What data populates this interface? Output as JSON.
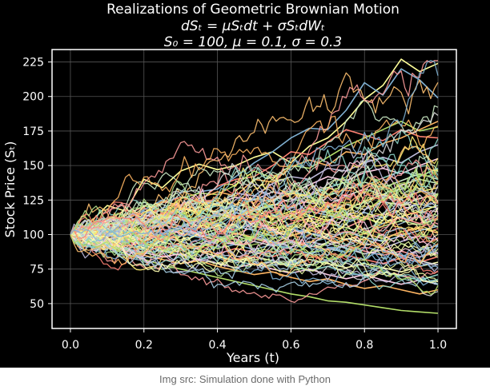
{
  "figure": {
    "background": "#000000",
    "title_lines": [
      "Realizations of Geometric Brownian Motion",
      "dSₜ = μSₜdt + σSₜdWₜ",
      "S₀ = 100, μ = 0.1, σ = 0.3"
    ]
  },
  "chart_data": {
    "type": "line",
    "title": "Realizations of Geometric Brownian Motion",
    "subtitle": [
      "dSₜ = μSₜdt + σSₜdWₜ",
      "S₀ = 100, μ = 0.1, σ = 0.3"
    ],
    "xlabel": "Years (t)",
    "ylabel": "Stock Price (Sₜ)",
    "xlim": [
      -0.05,
      1.05
    ],
    "ylim": [
      32,
      234
    ],
    "xticks": [
      0.0,
      0.2,
      0.4,
      0.6,
      0.8,
      1.0
    ],
    "xtick_labels": [
      "0.0",
      "0.2",
      "0.4",
      "0.6",
      "0.8",
      "1.0"
    ],
    "yticks": [
      50,
      75,
      100,
      125,
      150,
      175,
      200,
      225
    ],
    "ytick_labels": [
      "50",
      "75",
      "100",
      "125",
      "150",
      "175",
      "200",
      "225"
    ],
    "grid": true,
    "legend": "none",
    "n_realizations": 100,
    "S0": 100,
    "mu": 0.1,
    "sigma": 0.3,
    "palette": [
      "#e5f5a0",
      "#8dd3c7",
      "#ffffb3",
      "#bebada",
      "#fb8072",
      "#80b1d3",
      "#fdb462",
      "#b3de69",
      "#fccde5",
      "#d9d9d9",
      "#ccebc5",
      "#ffed6f",
      "#a6cee3",
      "#b2df8a",
      "#fb9a99",
      "#fdbf6f"
    ],
    "x": [
      0.0,
      0.05,
      0.1,
      0.15,
      0.2,
      0.25,
      0.3,
      0.35,
      0.4,
      0.45,
      0.5,
      0.55,
      0.6,
      0.65,
      0.7,
      0.75,
      0.8,
      0.85,
      0.9,
      0.95,
      1.0
    ],
    "series": [
      {
        "color": "#ffff99",
        "values": [
          100,
          108,
          121,
          117,
          140,
          134,
          146,
          151,
          147,
          150,
          156,
          160,
          152,
          164,
          170,
          182,
          198,
          208,
          227,
          218,
          224
        ]
      },
      {
        "color": "#80b1d3",
        "values": [
          100,
          104,
          112,
          110,
          118,
          125,
          120,
          131,
          133,
          142,
          152,
          160,
          170,
          177,
          176,
          190,
          210,
          201,
          220,
          212,
          199
        ]
      },
      {
        "color": "#fb8072",
        "values": [
          100,
          106,
          110,
          118,
          114,
          123,
          127,
          124,
          135,
          140,
          142,
          150,
          160,
          158,
          167,
          176,
          172,
          168,
          176,
          171,
          170
        ]
      },
      {
        "color": "#b3de69",
        "values": [
          100,
          103,
          109,
          114,
          121,
          117,
          126,
          130,
          129,
          136,
          146,
          141,
          150,
          148,
          156,
          164,
          170,
          176,
          182,
          175,
          178
        ]
      },
      {
        "color": "#fdb462",
        "values": [
          100,
          107,
          104,
          112,
          116,
          124,
          121,
          126,
          131,
          128,
          140,
          138,
          149,
          154,
          150,
          160,
          158,
          166,
          170,
          176,
          182
        ]
      },
      {
        "color": "#bebada",
        "values": [
          100,
          102,
          108,
          106,
          113,
          118,
          116,
          124,
          122,
          130,
          128,
          137,
          142,
          140,
          148,
          146,
          152,
          156,
          152,
          160,
          165
        ]
      },
      {
        "color": "#fccde5",
        "values": [
          100,
          105,
          111,
          109,
          114,
          112,
          119,
          117,
          123,
          127,
          125,
          131,
          129,
          136,
          142,
          139,
          145,
          148,
          144,
          150,
          155
        ]
      },
      {
        "color": "#8dd3c7",
        "values": [
          100,
          101,
          104,
          110,
          107,
          113,
          111,
          117,
          121,
          119,
          126,
          124,
          131,
          128,
          134,
          138,
          135,
          141,
          146,
          142,
          148
        ]
      },
      {
        "color": "#ccebc5",
        "values": [
          100,
          103,
          99,
          106,
          110,
          108,
          114,
          120,
          116,
          122,
          119,
          125,
          130,
          127,
          121,
          128,
          133,
          129,
          136,
          140,
          137
        ]
      },
      {
        "color": "#ffed6f",
        "values": [
          100,
          96,
          101,
          105,
          102,
          108,
          112,
          109,
          115,
          113,
          118,
          122,
          120,
          125,
          123,
          118,
          124,
          129,
          126,
          131,
          134
        ]
      },
      {
        "color": "#d9d9d9",
        "values": [
          100,
          104,
          106,
          103,
          109,
          114,
          111,
          106,
          110,
          116,
          113,
          108,
          114,
          119,
          116,
          122,
          118,
          124,
          121,
          126,
          129
        ]
      },
      {
        "color": "#a6cee3",
        "values": [
          100,
          99,
          103,
          100,
          96,
          101,
          105,
          110,
          107,
          103,
          109,
          114,
          111,
          117,
          114,
          110,
          116,
          112,
          118,
          122,
          119
        ]
      },
      {
        "color": "#fb9a99",
        "values": [
          100,
          102,
          98,
          104,
          101,
          97,
          103,
          107,
          104,
          100,
          106,
          103,
          108,
          112,
          109,
          105,
          111,
          115,
          112,
          108,
          114
        ]
      },
      {
        "color": "#b2df8a",
        "values": [
          100,
          97,
          100,
          96,
          102,
          99,
          95,
          100,
          104,
          101,
          97,
          102,
          99,
          104,
          108,
          105,
          101,
          106,
          110,
          107,
          111
        ]
      },
      {
        "color": "#fdbf6f",
        "values": [
          100,
          101,
          97,
          99,
          95,
          100,
          103,
          99,
          96,
          101,
          98,
          94,
          99,
          103,
          100,
          96,
          101,
          97,
          102,
          105,
          101
        ]
      },
      {
        "color": "#bebada",
        "values": [
          100,
          98,
          95,
          97,
          93,
          98,
          95,
          91,
          96,
          93,
          98,
          95,
          91,
          95,
          92,
          97,
          94,
          90,
          95,
          99,
          96
        ]
      },
      {
        "color": "#80b1d3",
        "values": [
          100,
          97,
          94,
          96,
          92,
          95,
          91,
          94,
          90,
          93,
          89,
          93,
          90,
          86,
          90,
          87,
          91,
          88,
          84,
          89,
          92
        ]
      },
      {
        "color": "#fb8072",
        "values": [
          100,
          99,
          95,
          92,
          94,
          90,
          93,
          89,
          86,
          90,
          87,
          84,
          88,
          85,
          81,
          85,
          82,
          79,
          83,
          80,
          84
        ]
      },
      {
        "color": "#ffffb3",
        "values": [
          100,
          96,
          93,
          90,
          92,
          88,
          85,
          88,
          84,
          81,
          84,
          81,
          78,
          82,
          79,
          76,
          79,
          76,
          73,
          77,
          80
        ]
      },
      {
        "color": "#8dd3c7",
        "values": [
          100,
          95,
          92,
          89,
          86,
          89,
          85,
          82,
          85,
          81,
          78,
          81,
          77,
          74,
          77,
          73,
          70,
          73,
          70,
          67,
          71
        ]
      },
      {
        "color": "#fccde5",
        "values": [
          100,
          97,
          93,
          90,
          87,
          84,
          86,
          82,
          79,
          76,
          79,
          75,
          72,
          75,
          71,
          68,
          71,
          67,
          64,
          67,
          64
        ]
      },
      {
        "color": "#fdb462",
        "values": [
          100,
          94,
          91,
          88,
          85,
          82,
          79,
          81,
          77,
          74,
          71,
          73,
          69,
          66,
          68,
          64,
          61,
          63,
          60,
          57,
          60
        ]
      },
      {
        "color": "#b3de69",
        "values": [
          100,
          95,
          91,
          86,
          82,
          78,
          75,
          72,
          69,
          66,
          63,
          60,
          57,
          55,
          52,
          51,
          49,
          47,
          45,
          44,
          43
        ]
      },
      {
        "color": "#ffed6f",
        "values": [
          100,
          103,
          107,
          111,
          108,
          115,
          119,
          116,
          113,
          118,
          115,
          112,
          117,
          114,
          110,
          115,
          112,
          108,
          113,
          117,
          121
        ]
      },
      {
        "color": "#a6cee3",
        "values": [
          100,
          102,
          100,
          97,
          101,
          104,
          101,
          98,
          102,
          106,
          103,
          99,
          104,
          101,
          97,
          102,
          98,
          95,
          99,
          103,
          106
        ]
      },
      {
        "color": "#fb9a99",
        "values": [
          100,
          98,
          101,
          104,
          100,
          96,
          99,
          102,
          98,
          94,
          97,
          93,
          96,
          92,
          89,
          92,
          88,
          85,
          88,
          84,
          87
        ]
      },
      {
        "color": "#ccebc5",
        "values": [
          100,
          101,
          104,
          108,
          112,
          109,
          106,
          111,
          115,
          112,
          117,
          121,
          126,
          123,
          128,
          133,
          138,
          134,
          139,
          144,
          140
        ]
      },
      {
        "color": "#d9d9d9",
        "values": [
          100,
          99,
          96,
          100,
          103,
          107,
          104,
          100,
          96,
          99,
          95,
          92,
          95,
          91,
          94,
          90,
          86,
          89,
          85,
          81,
          78
        ]
      }
    ]
  },
  "caption": {
    "text": "Img src: Simulation done with Python"
  }
}
